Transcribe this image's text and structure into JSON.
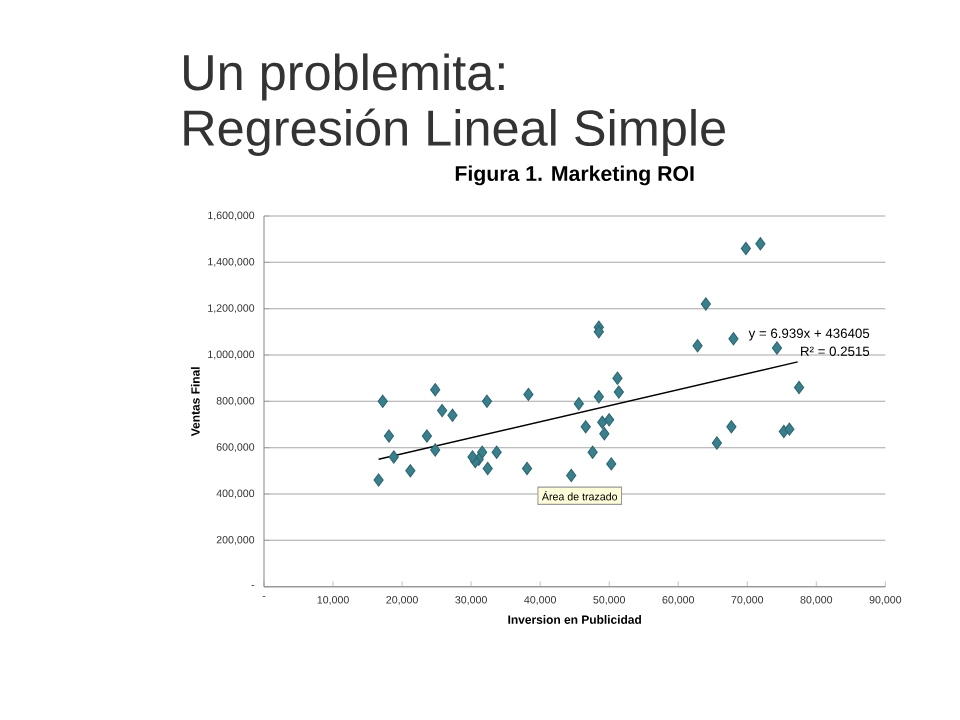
{
  "chart_data": {
    "type": "scatter",
    "title": "Figura 1. Marketing ROI",
    "xlabel": "Inversion en Publicidad",
    "ylabel": "Ventas Final",
    "annotations": [
      "Un problemita:",
      "Regresión Lineal Simple",
      "Área de trazado",
      "y = 6.939x + 436405",
      "R² = 0.2515"
    ],
    "xlim": [
      0,
      90000
    ],
    "ylim": [
      0,
      1600000
    ],
    "xticks": [
      {
        "value": 0,
        "label": "-"
      },
      {
        "value": 10000,
        "label": "10,000"
      },
      {
        "value": 20000,
        "label": "20,000"
      },
      {
        "value": 30000,
        "label": "30,000"
      },
      {
        "value": 40000,
        "label": "40,000"
      },
      {
        "value": 50000,
        "label": "50,000"
      },
      {
        "value": 60000,
        "label": "60,000"
      },
      {
        "value": 70000,
        "label": "70,000"
      },
      {
        "value": 80000,
        "label": "80,000"
      },
      {
        "value": 90000,
        "label": "90,000"
      }
    ],
    "yticks": [
      {
        "value": 0,
        "label": "-"
      },
      {
        "value": 200000,
        "label": "200,000"
      },
      {
        "value": 400000,
        "label": "400,000"
      },
      {
        "value": 600000,
        "label": "600,000"
      },
      {
        "value": 800000,
        "label": "800,000"
      },
      {
        "value": 1000000,
        "label": "1,000,000"
      },
      {
        "value": 1200000,
        "label": "1,200,000"
      },
      {
        "value": 1400000,
        "label": "1,400,000"
      },
      {
        "value": 1600000,
        "label": "1,600,000"
      }
    ],
    "grid": "y",
    "marker": "diamond",
    "series": [
      {
        "color": "#3a7f8c",
        "x": [
          17200,
          24800,
          32300,
          38300,
          18100,
          23600,
          25800,
          27300,
          24800,
          18800,
          21200,
          16600,
          33700,
          31600,
          31100,
          30600,
          32100,
          32400,
          30200,
          38100,
          48500,
          48500,
          51200,
          51400,
          48500,
          45600,
          46600,
          49000,
          50000,
          49300,
          47600,
          50300,
          44500,
          62800,
          64000,
          68000,
          69800,
          71900,
          74300,
          77500,
          67700,
          65600,
          75300,
          76100
        ],
        "values": [
          800000,
          850000,
          800000,
          830000,
          650000,
          650000,
          760000,
          740000,
          590000,
          560000,
          500000,
          460000,
          580000,
          580000,
          550000,
          540000,
          null,
          510000,
          560000,
          510000,
          1120000,
          1100000,
          900000,
          840000,
          820000,
          790000,
          690000,
          710000,
          720000,
          660000,
          580000,
          530000,
          480000,
          1040000,
          1220000,
          1070000,
          1460000,
          1480000,
          1030000,
          860000,
          690000,
          620000,
          670000,
          680000
        ]
      },
      {
        "type": "line",
        "color": "#000000",
        "marker": "none",
        "x": [
          16600,
          77300
        ],
        "values": [
          550000,
          970000
        ]
      }
    ]
  }
}
